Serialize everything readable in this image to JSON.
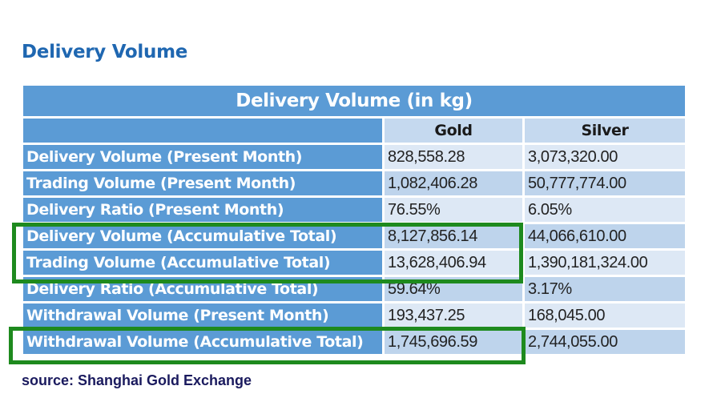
{
  "heading": "Delivery Volume",
  "table": {
    "caption": "Delivery Volume (in kg)",
    "columns": [
      "Gold",
      "Silver"
    ],
    "rows": [
      {
        "label": "Delivery Volume (Present Month)",
        "gold": "828,558.28",
        "silver": "3,073,320.00"
      },
      {
        "label": "Trading Volume (Present Month)",
        "gold": "1,082,406.28",
        "silver": "50,777,774.00"
      },
      {
        "label": "Delivery Ratio (Present Month)",
        "gold": "76.55%",
        "silver": "6.05%"
      },
      {
        "label": "Delivery Volume (Accumulative Total)",
        "gold": "8,127,856.14",
        "silver": "44,066,610.00"
      },
      {
        "label": "Trading Volume (Accumulative Total)",
        "gold": "13,628,406.94",
        "silver": "1,390,181,324.00"
      },
      {
        "label": "Delivery Ratio (Accumulative Total)",
        "gold": "59.64%",
        "silver": "3.17%"
      },
      {
        "label": "Withdrawal Volume (Present Month)",
        "gold": "193,437.25",
        "silver": "168,045.00"
      },
      {
        "label": "Withdrawal Volume (Accumulative Total)",
        "gold": "1,745,696.59",
        "silver": "2,744,055.00"
      }
    ]
  },
  "source": "source: Shanghai Gold Exchange",
  "colors": {
    "highlight": "#1e8a1e",
    "header": "#5b9bd5",
    "title": "#1f67b1"
  }
}
